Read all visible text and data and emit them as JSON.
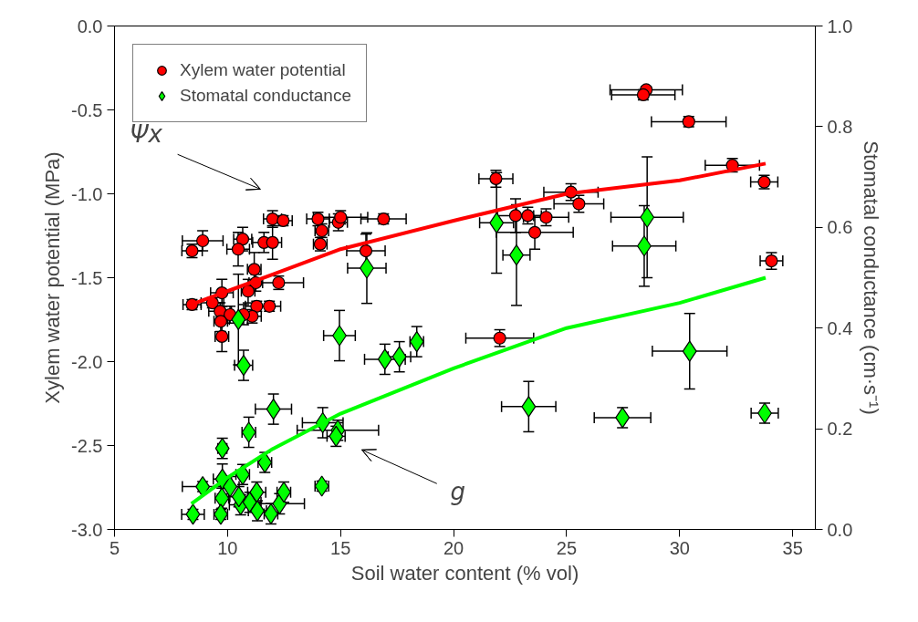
{
  "chart_data": {
    "type": "scatter",
    "xlabel": "Soil water content (% vol)",
    "ylabel": "Xylem water potential (MPa)",
    "y2label": "Stomatal conductance (cm·s⁻¹)",
    "xlim": [
      5,
      36
    ],
    "xticks": [
      5,
      10,
      15,
      20,
      25,
      30,
      35
    ],
    "ylim": [
      -3,
      0
    ],
    "yticks": [
      {
        "value": -3,
        "label": "-3.0"
      },
      {
        "value": -2.5,
        "label": "-2.5"
      },
      {
        "value": -2,
        "label": "-2.0"
      },
      {
        "value": -1.5,
        "label": "-1.5"
      },
      {
        "value": -1,
        "label": "-1.0"
      },
      {
        "value": -0.5,
        "label": "-0.5"
      },
      {
        "value": 0,
        "label": "0.0"
      }
    ],
    "y2lim": [
      0,
      1
    ],
    "y2ticks": [
      {
        "value": 0,
        "label": "0.0"
      },
      {
        "value": 0.2,
        "label": "0.2"
      },
      {
        "value": 0.4,
        "label": "0.4"
      },
      {
        "value": 0.6,
        "label": "0.6"
      },
      {
        "value": 0.8,
        "label": "0.8"
      },
      {
        "value": 1,
        "label": "1.0"
      }
    ],
    "grid": false,
    "legend": "top left",
    "annotations": [
      "Ψx",
      "g"
    ],
    "series": [
      {
        "name": "Xylem water potential",
        "marker": "circle",
        "color": "#ff0000",
        "x": [
          8.43,
          8.9,
          10.67,
          10.47,
          11.61,
          11.99,
          11.99,
          12.46,
          14.0,
          14.17,
          14.1,
          14.9,
          15.0,
          11.18,
          11.25,
          10.91,
          12.26,
          9.75,
          8.43,
          9.33,
          9.67,
          10.11,
          9.7,
          9.75,
          11.29,
          11.85,
          11.09,
          10.71,
          16.9,
          16.12,
          21.87,
          22.74,
          23.28,
          24.09,
          23.59,
          25.19,
          22.04,
          28.52,
          28.39,
          30.4,
          32.33,
          33.74,
          34.06,
          25.54
        ],
        "values": [
          -1.34,
          -1.28,
          -1.27,
          -1.33,
          -1.29,
          -1.29,
          -1.15,
          -1.16,
          -1.15,
          -1.22,
          -1.3,
          -1.17,
          -1.14,
          -1.45,
          -1.53,
          -1.58,
          -1.53,
          -1.59,
          -1.66,
          -1.65,
          -1.7,
          -1.72,
          -1.76,
          -1.85,
          -1.67,
          -1.67,
          -1.73,
          -1.72,
          -1.15,
          -1.34,
          -0.91,
          -1.13,
          -1.13,
          -1.14,
          -1.23,
          -0.99,
          -1.86,
          -0.38,
          -0.41,
          -0.57,
          -0.83,
          -0.93,
          -1.4,
          -1.06
        ],
        "xerrors": [
          0.45,
          0.9,
          0.4,
          0.5,
          0.5,
          0.4,
          0.4,
          0.4,
          0.5,
          0.3,
          0.3,
          0.4,
          1.2,
          0.3,
          0.3,
          0.3,
          1.1,
          0.5,
          0.4,
          0.5,
          0.5,
          0.6,
          0.3,
          0.3,
          0.5,
          0.5,
          0.4,
          0.5,
          1.0,
          0.85,
          0.75,
          0.8,
          0.6,
          1.0,
          1.7,
          1.2,
          1.5,
          1.6,
          1.4,
          1.65,
          1.2,
          0.6,
          0.5,
          1.1
        ],
        "errors": [
          0.04,
          0.06,
          0.07,
          0.1,
          0.06,
          0.1,
          0.05,
          0.03,
          0.04,
          0.04,
          0.04,
          0.05,
          0.04,
          0.1,
          0.05,
          0.07,
          0.04,
          0.08,
          0.03,
          0.03,
          0.05,
          0.05,
          0.06,
          0.09,
          0.03,
          0.03,
          0.04,
          0.06,
          0.03,
          0.1,
          0.05,
          0.1,
          0.05,
          0.05,
          0.1,
          0.05,
          0.05,
          0.02,
          0.03,
          0.03,
          0.04,
          0.04,
          0.05,
          0.05
        ]
      },
      {
        "name": "Stomatal conductance",
        "marker": "diamond",
        "color": "#00ff00",
        "axis": "y2",
        "x": [
          10.48,
          14.95,
          10.71,
          12.03,
          10.94,
          9.77,
          14.21,
          14.88,
          14.8,
          11.65,
          8.9,
          9.77,
          10.11,
          10.67,
          9.75,
          10.58,
          10.98,
          10.5,
          11.29,
          11.32,
          11.92,
          12.3,
          12.49,
          8.47,
          9.7,
          14.17,
          16.16,
          16.96,
          17.6,
          18.37,
          21.9,
          22.78,
          23.32,
          28.56,
          28.43,
          30.44,
          27.47,
          33.76
        ],
        "values": [
          0.417,
          0.385,
          0.326,
          0.239,
          0.193,
          0.161,
          0.212,
          0.197,
          0.185,
          0.133,
          0.085,
          0.1,
          0.085,
          0.109,
          0.062,
          0.049,
          0.054,
          0.065,
          0.074,
          0.037,
          0.031,
          0.051,
          0.074,
          0.03,
          0.03,
          0.086,
          0.519,
          0.338,
          0.343,
          0.373,
          0.609,
          0.545,
          0.244,
          0.62,
          0.563,
          0.354,
          0.222,
          0.231
        ],
        "xerrors": [
          0.4,
          0.7,
          0.4,
          0.8,
          0.3,
          0.2,
          0.9,
          1.8,
          0.4,
          0.3,
          0.9,
          0.4,
          0.4,
          0.3,
          0.3,
          0.5,
          0.5,
          0.4,
          0.4,
          0.4,
          0.3,
          1.1,
          0.3,
          0.5,
          0.3,
          0.3,
          0.85,
          0.9,
          0.5,
          0.3,
          0.75,
          0.6,
          1.2,
          1.6,
          1.4,
          1.65,
          1.25,
          0.6
        ],
        "errors": [
          0.09,
          0.05,
          0.03,
          0.03,
          0.03,
          0.02,
          0.03,
          0.02,
          0.02,
          0.02,
          0.01,
          0.03,
          0.02,
          0.02,
          0.02,
          0.02,
          0.02,
          0.02,
          0.02,
          0.02,
          0.02,
          0.02,
          0.02,
          0.01,
          0.01,
          0.01,
          0.07,
          0.03,
          0.03,
          0.03,
          0.1,
          0.1,
          0.05,
          0.12,
          0.08,
          0.075,
          0.02,
          0.02
        ]
      },
      {
        "type": "line",
        "color": "#ff0000",
        "x": [
          8.4,
          10,
          12,
          15,
          20,
          25,
          30,
          33.8
        ],
        "values": [
          -1.66,
          -1.58,
          -1.48,
          -1.33,
          -1.16,
          -1.0,
          -0.92,
          -0.82
        ]
      },
      {
        "type": "line",
        "color": "#00ff00",
        "axis": "y2",
        "x": [
          8.4,
          10,
          12,
          15,
          20,
          25,
          30,
          33.8
        ],
        "values": [
          0.051,
          0.103,
          0.16,
          0.23,
          0.32,
          0.4,
          0.45,
          0.5
        ]
      }
    ]
  }
}
